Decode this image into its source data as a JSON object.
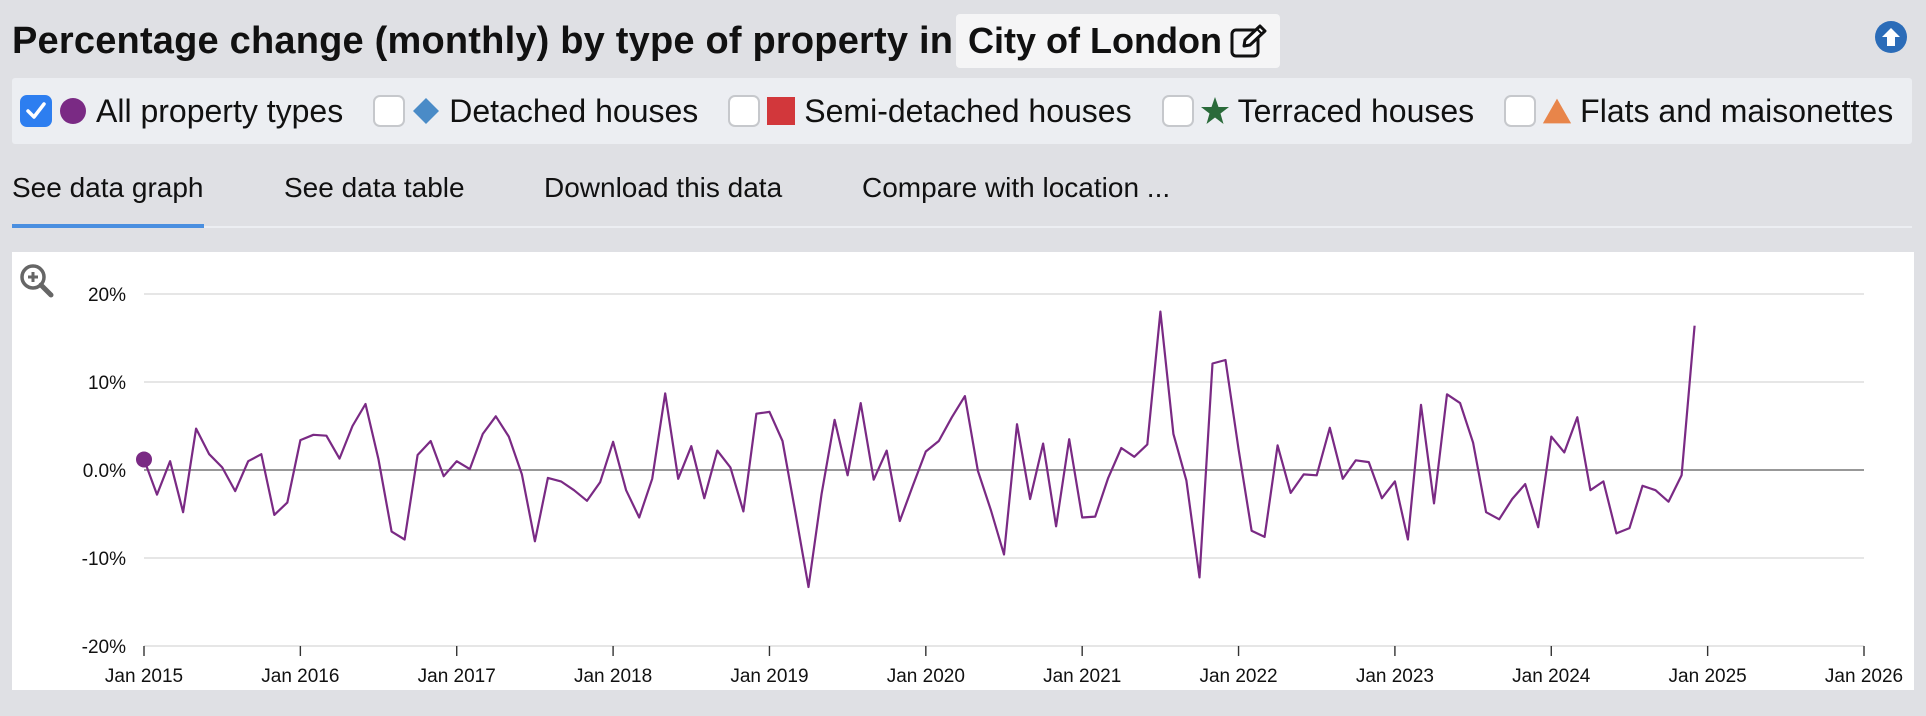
{
  "header": {
    "title": "Percentage change (monthly) by type of property in",
    "location": "City of London",
    "edit_icon": "edit-icon",
    "up_icon": "arrow-up-circle-icon"
  },
  "legend": {
    "items": [
      {
        "label": "All property types",
        "checked": true,
        "marker": "circle",
        "color": "#7a2a84"
      },
      {
        "label": "Detached houses",
        "checked": false,
        "marker": "diamond",
        "color": "#4a8bc7"
      },
      {
        "label": "Semi-detached houses",
        "checked": false,
        "marker": "square",
        "color": "#d2373b"
      },
      {
        "label": "Terraced houses",
        "checked": false,
        "marker": "star",
        "color": "#2a6a3a"
      },
      {
        "label": "Flats and maisonettes",
        "checked": false,
        "marker": "triangle",
        "color": "#e8854a"
      }
    ]
  },
  "tabs": [
    {
      "label": "See data graph",
      "active": true
    },
    {
      "label": "See data table",
      "active": false
    },
    {
      "label": "Download this data",
      "active": false
    },
    {
      "label": "Compare with location ...",
      "active": false
    }
  ],
  "chart_data": {
    "type": "line",
    "title": "",
    "xlabel": "",
    "ylabel": "",
    "xlim": [
      "2015-01",
      "2026-01"
    ],
    "ylim": [
      -20,
      20
    ],
    "yticks": [
      20,
      10,
      0,
      -10,
      -20
    ],
    "ytick_labels": [
      "20%",
      "10%",
      "0.0%",
      "-10%",
      "-20%"
    ],
    "xticks": [
      "2015-01",
      "2016-01",
      "2017-01",
      "2018-01",
      "2019-01",
      "2020-01",
      "2021-01",
      "2022-01",
      "2023-01",
      "2024-01",
      "2025-01",
      "2026-01"
    ],
    "xtick_labels": [
      "Jan 2015",
      "Jan 2016",
      "Jan 2017",
      "Jan 2018",
      "Jan 2019",
      "Jan 2020",
      "Jan 2021",
      "Jan 2022",
      "Jan 2023",
      "Jan 2024",
      "Jan 2025",
      "Jan 2026"
    ],
    "grid": true,
    "series": [
      {
        "name": "All property types",
        "color": "#7a2a84",
        "start": "2015-01",
        "values": [
          1.2,
          -2.8,
          1.0,
          -4.8,
          4.7,
          1.8,
          0.3,
          -2.4,
          1.0,
          1.8,
          -5.1,
          -3.7,
          3.4,
          4.0,
          3.9,
          1.3,
          5.0,
          7.5,
          1.2,
          -7.0,
          -7.9,
          1.7,
          3.3,
          -0.7,
          1.0,
          0.1,
          4.1,
          6.1,
          3.8,
          -0.5,
          -8.1,
          -0.9,
          -1.3,
          -2.3,
          -3.5,
          -1.4,
          3.2,
          -2.3,
          -5.4,
          -1.0,
          8.7,
          -1.0,
          2.7,
          -3.2,
          2.2,
          0.3,
          -4.7,
          6.4,
          6.6,
          3.3,
          -4.9,
          -13.3,
          -2.7,
          5.7,
          -0.6,
          7.6,
          -1.1,
          2.2,
          -5.8,
          -1.8,
          2.1,
          3.3,
          6.0,
          8.4,
          -0.1,
          -4.6,
          -9.6,
          5.2,
          -3.3,
          3.0,
          -6.4,
          3.5,
          -5.4,
          -5.3,
          -0.9,
          2.5,
          1.5,
          2.9,
          18.0,
          4.1,
          -1.2,
          -12.2,
          12.1,
          12.5,
          2.4,
          -6.9,
          -7.6,
          2.8,
          -2.6,
          -0.5,
          -0.6,
          4.8,
          -1.0,
          1.1,
          0.9,
          -3.2,
          -1.3,
          -7.9,
          7.4,
          -3.8,
          8.6,
          7.6,
          3.1,
          -4.8,
          -5.6,
          -3.3,
          -1.6,
          -6.5,
          3.8,
          2.0,
          6.0,
          -2.3,
          -1.3,
          -7.2,
          -6.6,
          -1.8,
          -2.3,
          -3.6,
          -0.6,
          16.4
        ]
      }
    ]
  },
  "zoom_icon": "zoom-in-icon"
}
